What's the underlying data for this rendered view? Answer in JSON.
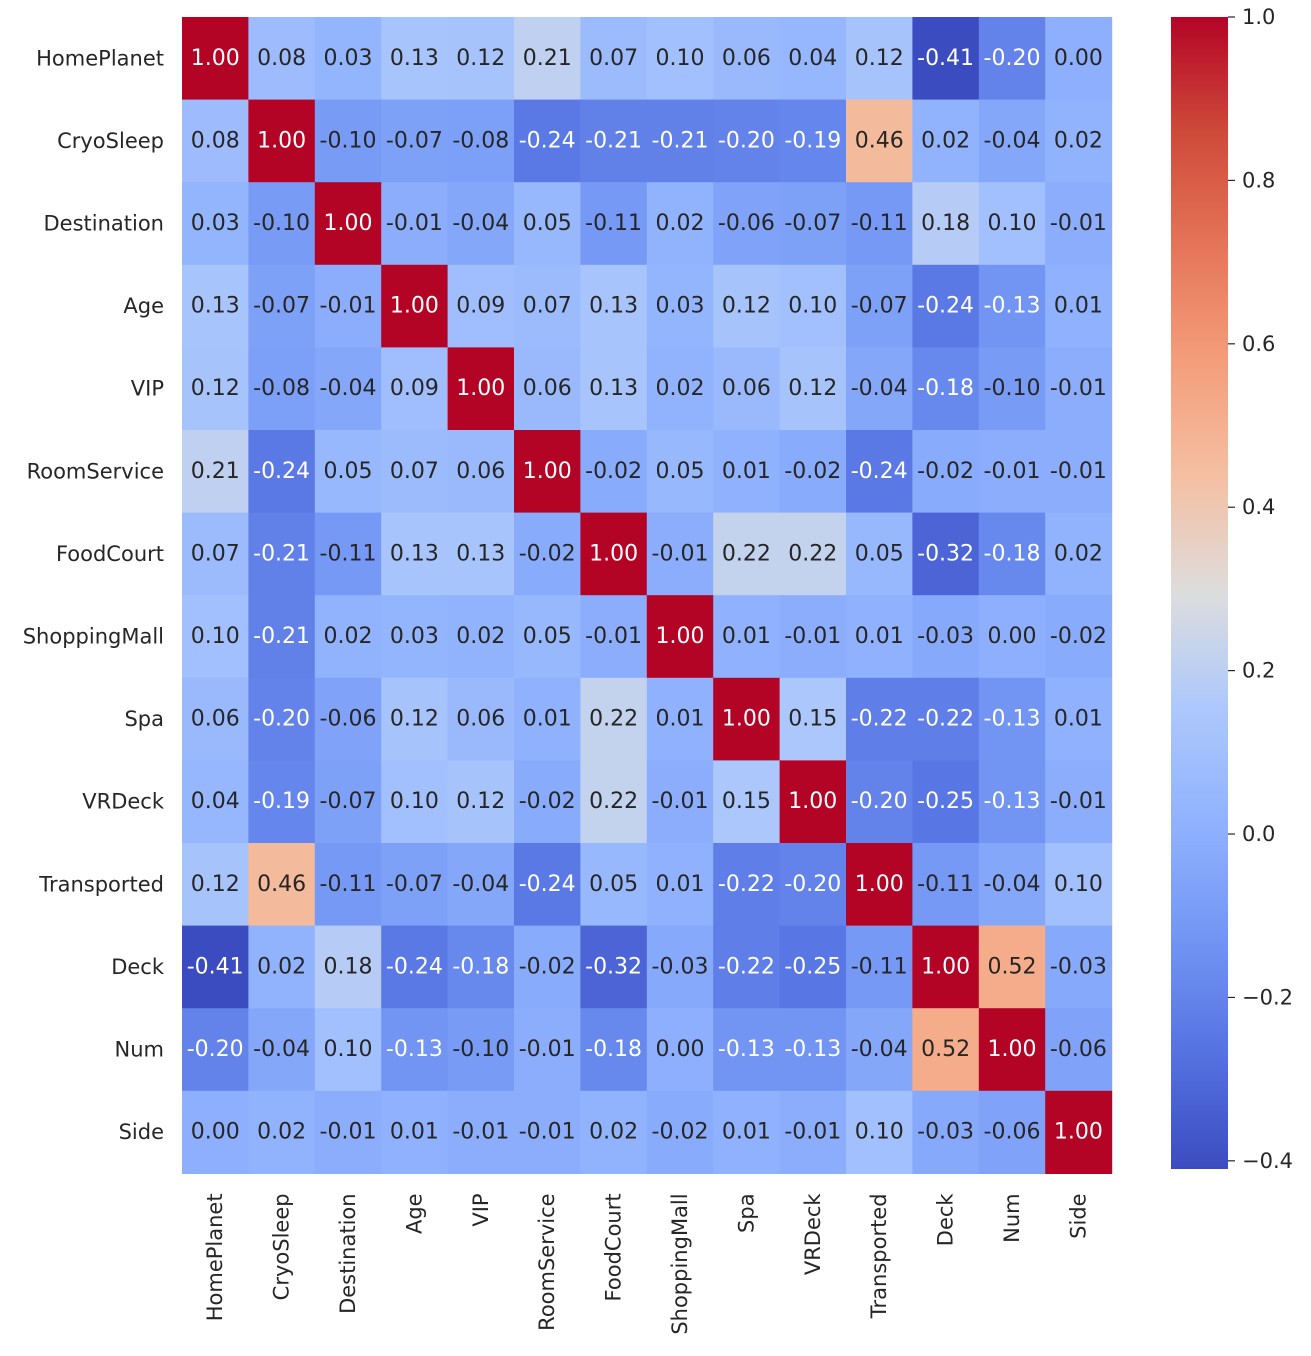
{
  "chart_data": {
    "type": "heatmap",
    "title": "",
    "xlabel": "",
    "ylabel": "",
    "colormap": "coolwarm",
    "vmin": -0.41,
    "vmax": 1.0,
    "value_format": "2 decimals",
    "labels": [
      "HomePlanet",
      "CryoSleep",
      "Destination",
      "Age",
      "VIP",
      "RoomService",
      "FoodCourt",
      "ShoppingMall",
      "Spa",
      "VRDeck",
      "Transported",
      "Deck",
      "Num",
      "Side"
    ],
    "values": [
      [
        1.0,
        0.08,
        0.03,
        0.13,
        0.12,
        0.21,
        0.07,
        0.1,
        0.06,
        0.04,
        0.12,
        -0.41,
        -0.2,
        0.0
      ],
      [
        0.08,
        1.0,
        -0.1,
        -0.07,
        -0.08,
        -0.24,
        -0.21,
        -0.21,
        -0.2,
        -0.19,
        0.46,
        0.02,
        -0.04,
        0.02
      ],
      [
        0.03,
        -0.1,
        1.0,
        -0.01,
        -0.04,
        0.05,
        -0.11,
        0.02,
        -0.06,
        -0.07,
        -0.11,
        0.18,
        0.1,
        -0.01
      ],
      [
        0.13,
        -0.07,
        -0.01,
        1.0,
        0.09,
        0.07,
        0.13,
        0.03,
        0.12,
        0.1,
        -0.07,
        -0.24,
        -0.13,
        0.01
      ],
      [
        0.12,
        -0.08,
        -0.04,
        0.09,
        1.0,
        0.06,
        0.13,
        0.02,
        0.06,
        0.12,
        -0.04,
        -0.18,
        -0.1,
        -0.01
      ],
      [
        0.21,
        -0.24,
        0.05,
        0.07,
        0.06,
        1.0,
        -0.02,
        0.05,
        0.01,
        -0.02,
        -0.24,
        -0.02,
        -0.01,
        -0.01
      ],
      [
        0.07,
        -0.21,
        -0.11,
        0.13,
        0.13,
        -0.02,
        1.0,
        -0.01,
        0.22,
        0.22,
        0.05,
        -0.32,
        -0.18,
        0.02
      ],
      [
        0.1,
        -0.21,
        0.02,
        0.03,
        0.02,
        0.05,
        -0.01,
        1.0,
        0.01,
        -0.01,
        0.01,
        -0.03,
        0.0,
        -0.02
      ],
      [
        0.06,
        -0.2,
        -0.06,
        0.12,
        0.06,
        0.01,
        0.22,
        0.01,
        1.0,
        0.15,
        -0.22,
        -0.22,
        -0.13,
        0.01
      ],
      [
        0.04,
        -0.19,
        -0.07,
        0.1,
        0.12,
        -0.02,
        0.22,
        -0.01,
        0.15,
        1.0,
        -0.2,
        -0.25,
        -0.13,
        -0.01
      ],
      [
        0.12,
        0.46,
        -0.11,
        -0.07,
        -0.04,
        -0.24,
        0.05,
        0.01,
        -0.22,
        -0.2,
        1.0,
        -0.11,
        -0.04,
        0.1
      ],
      [
        -0.41,
        0.02,
        0.18,
        -0.24,
        -0.18,
        -0.02,
        -0.32,
        -0.03,
        -0.22,
        -0.25,
        -0.11,
        1.0,
        0.52,
        -0.03
      ],
      [
        -0.2,
        -0.04,
        0.1,
        -0.13,
        -0.1,
        -0.01,
        -0.18,
        0.0,
        -0.13,
        -0.13,
        -0.04,
        0.52,
        1.0,
        -0.06
      ],
      [
        0.0,
        0.02,
        -0.01,
        0.01,
        -0.01,
        -0.01,
        0.02,
        -0.02,
        0.01,
        -0.01,
        0.1,
        -0.03,
        -0.06,
        1.0
      ]
    ],
    "colorbar": {
      "ticks": [
        -0.4,
        -0.2,
        0.0,
        0.2,
        0.4,
        0.6,
        0.8,
        1.0
      ],
      "tick_labels": [
        "−0.4",
        "−0.2",
        "0.0",
        "0.2",
        "0.4",
        "0.6",
        "0.8",
        "1.0"
      ]
    }
  }
}
